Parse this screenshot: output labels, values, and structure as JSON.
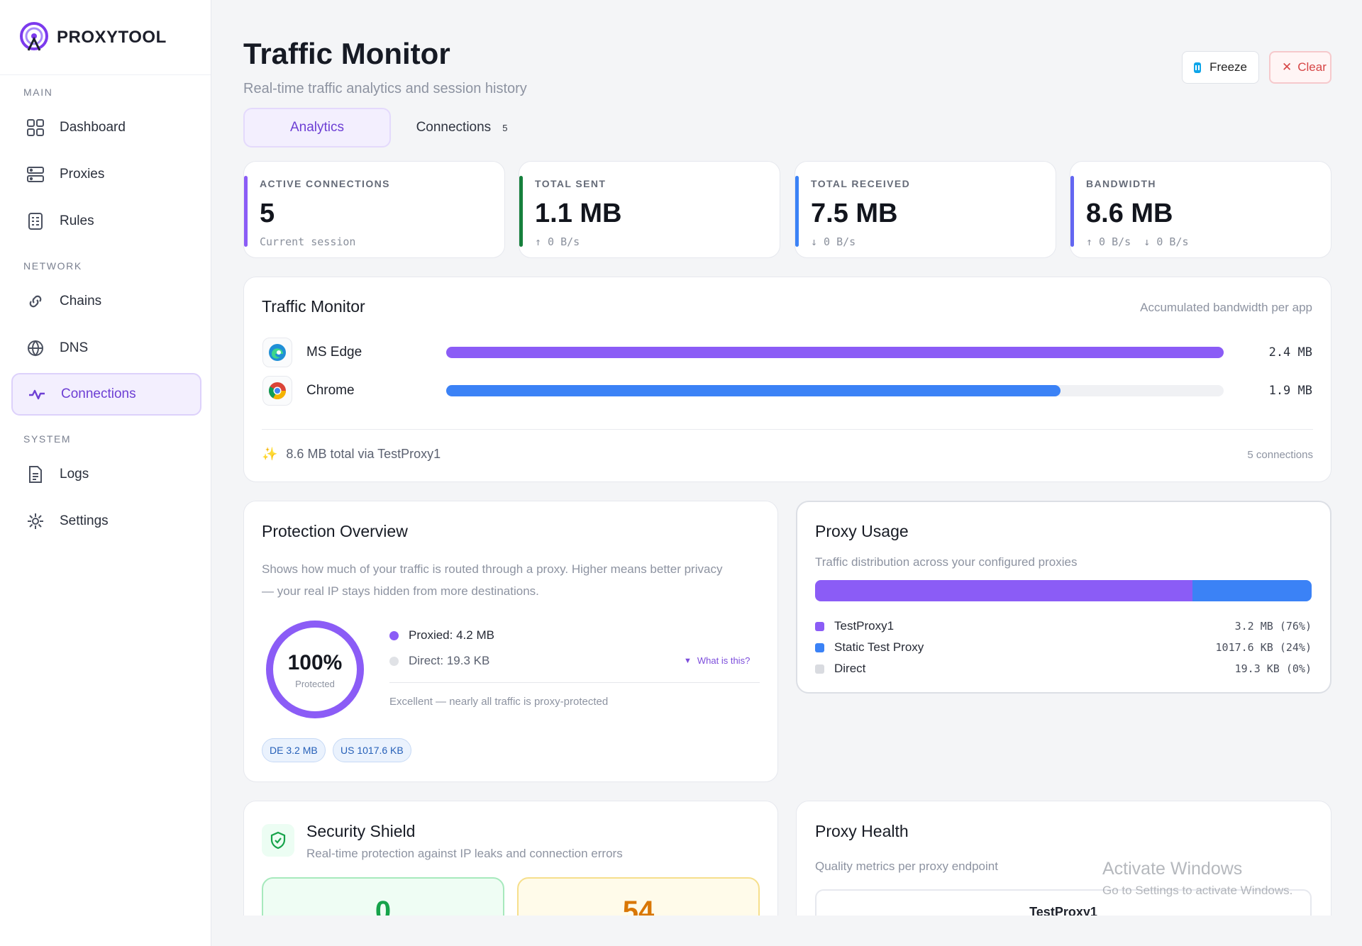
{
  "brand": {
    "name": "PROXYTOOL"
  },
  "sidebar": {
    "sections": {
      "main": "MAIN",
      "network": "NETWORK",
      "system": "SYSTEM"
    },
    "items": [
      {
        "label": "Dashboard",
        "icon": "grid-icon"
      },
      {
        "label": "Proxies",
        "icon": "server-icon"
      },
      {
        "label": "Rules",
        "icon": "checklist-icon"
      },
      {
        "label": "Chains",
        "icon": "link-icon"
      },
      {
        "label": "DNS",
        "icon": "globe-icon"
      },
      {
        "label": "Connections",
        "icon": "activity-icon",
        "active": true
      },
      {
        "label": "Logs",
        "icon": "file-icon"
      },
      {
        "label": "Settings",
        "icon": "gear-icon"
      }
    ]
  },
  "header": {
    "title": "Traffic Monitor",
    "subtitle": "Real-time traffic analytics and session history",
    "freeze_label": "Freeze",
    "clear_label": "Clear"
  },
  "tabs": {
    "analytics": "Analytics",
    "connections": "Connections",
    "connections_count": "5"
  },
  "stats": [
    {
      "label": "ACTIVE CONNECTIONS",
      "value": "5",
      "note": "Current session",
      "color": "#8b5cf6"
    },
    {
      "label": "TOTAL SENT",
      "value": "1.1 MB",
      "note": "↑ 0 B/s",
      "color": "#16803c"
    },
    {
      "label": "TOTAL RECEIVED",
      "value": "7.5 MB",
      "note": "↓ 0 B/s",
      "color": "#3b82f6"
    },
    {
      "label": "BANDWIDTH",
      "value": "8.6 MB",
      "note": "↑ 0 B/s  ↓ 0 B/s",
      "color": "#6366f1"
    }
  ],
  "traffic": {
    "title": "Traffic Monitor",
    "caption": "Accumulated bandwidth per app",
    "apps": [
      {
        "name": "MS Edge",
        "value": "2.4 MB",
        "share": 1.0,
        "color": "#8b5cf6",
        "icon": "edge-icon"
      },
      {
        "name": "Chrome",
        "value": "1.9 MB",
        "share": 0.79,
        "color": "#3b82f6",
        "icon": "chrome-icon"
      }
    ],
    "footer_total": "8.6 MB total via TestProxy1",
    "footer_count": "5 connections"
  },
  "protection": {
    "title": "Protection Overview",
    "description_1": "Shows how much of your traffic is routed through a proxy. Higher means better privacy",
    "description_2": "— your real IP stays hidden from more destinations.",
    "percent": "100%",
    "percent_label": "Protected",
    "proxied": "Proxied: 4.2 MB",
    "direct": "Direct: 19.3 KB",
    "what_is_this": "What is this?",
    "verdict": "Excellent — nearly all traffic is proxy-protected",
    "badges": [
      "DE 3.2 MB",
      "US 1017.6 KB"
    ]
  },
  "proxy_usage": {
    "title": "Proxy Usage",
    "caption": "Traffic distribution across your configured proxies",
    "items": [
      {
        "name": "TestProxy1",
        "value": "3.2 MB (76%)",
        "share": 0.76,
        "color": "#8b5cf6"
      },
      {
        "name": "Static Test Proxy",
        "value": "1017.6 KB (24%)",
        "share": 0.24,
        "color": "#3b82f6"
      },
      {
        "name": "Direct",
        "value": "19.3 KB (0%)",
        "share": 0.0,
        "color": "#d9dbe0"
      }
    ]
  },
  "security": {
    "title": "Security Shield",
    "caption": "Real-time protection against IP leaks and connection errors",
    "tile_values": [
      "0",
      "54"
    ]
  },
  "health": {
    "title": "Proxy Health",
    "caption": "Quality metrics per proxy endpoint",
    "first_proxy": "TestProxy1"
  },
  "watermark": {
    "line1": "Activate Windows",
    "line2": "Go to Settings to activate Windows."
  }
}
